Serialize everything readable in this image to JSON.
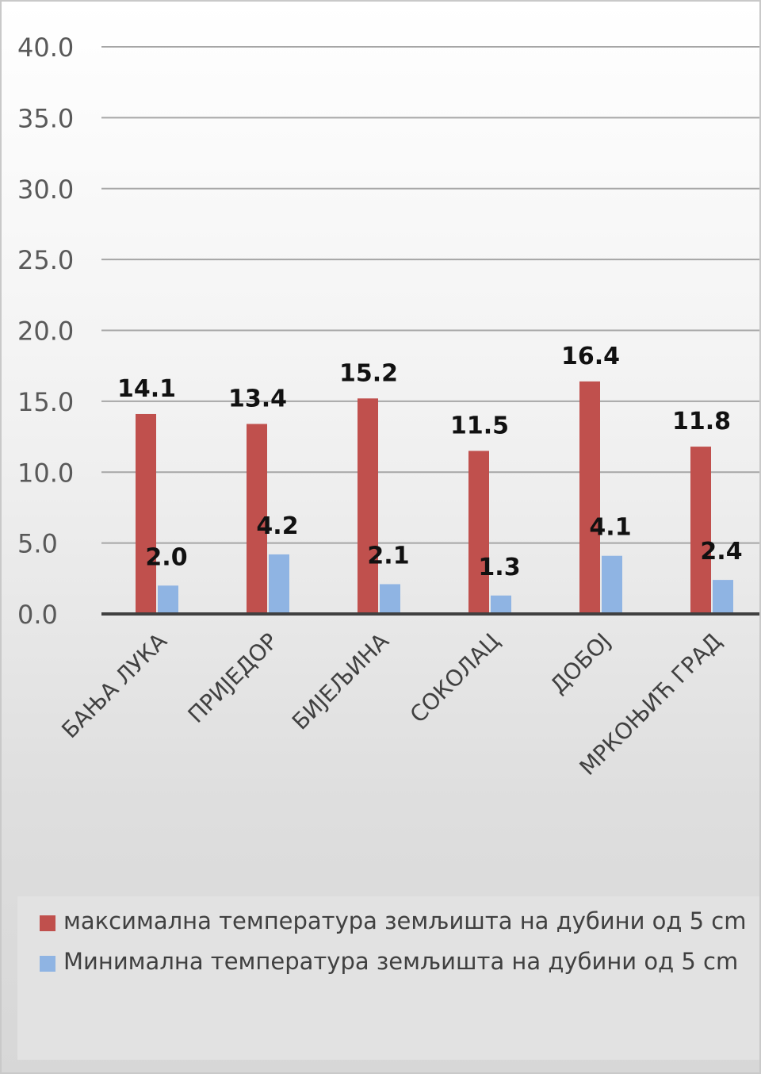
{
  "chart_data": {
    "type": "bar",
    "categories": [
      "БАЊА ЛУКА",
      "ПРИЈЕДОР",
      "БИЈЕЉИНА",
      "СОКОЛАЦ",
      "ДОБОЈ",
      "МРКОЊИЋ ГРАД"
    ],
    "series": [
      {
        "name": "максимална температура земљишта на дубини од 5 cm",
        "color": "#c0504d",
        "values": [
          14.1,
          13.4,
          15.2,
          11.5,
          16.4,
          11.8
        ],
        "labels": [
          "14.1",
          "13.4",
          "15.2",
          "11.5",
          "16.4",
          "11.8"
        ]
      },
      {
        "name": "Минимална температура земљишта на дубини од 5 cm",
        "color": "#8fb4e3",
        "values": [
          2.0,
          4.2,
          2.1,
          1.3,
          4.1,
          2.4
        ],
        "labels": [
          "2.0",
          "4.2",
          "2.1",
          "1.3",
          "4.1",
          "2.4"
        ]
      }
    ],
    "yticks": [
      "0.0",
      "5.0",
      "10.0",
      "15.0",
      "20.0",
      "25.0",
      "30.0",
      "35.0",
      "40.0"
    ],
    "ylim": [
      0,
      40
    ],
    "title": "",
    "xlabel": "",
    "ylabel": "",
    "grid": true,
    "legend": "bottom"
  }
}
